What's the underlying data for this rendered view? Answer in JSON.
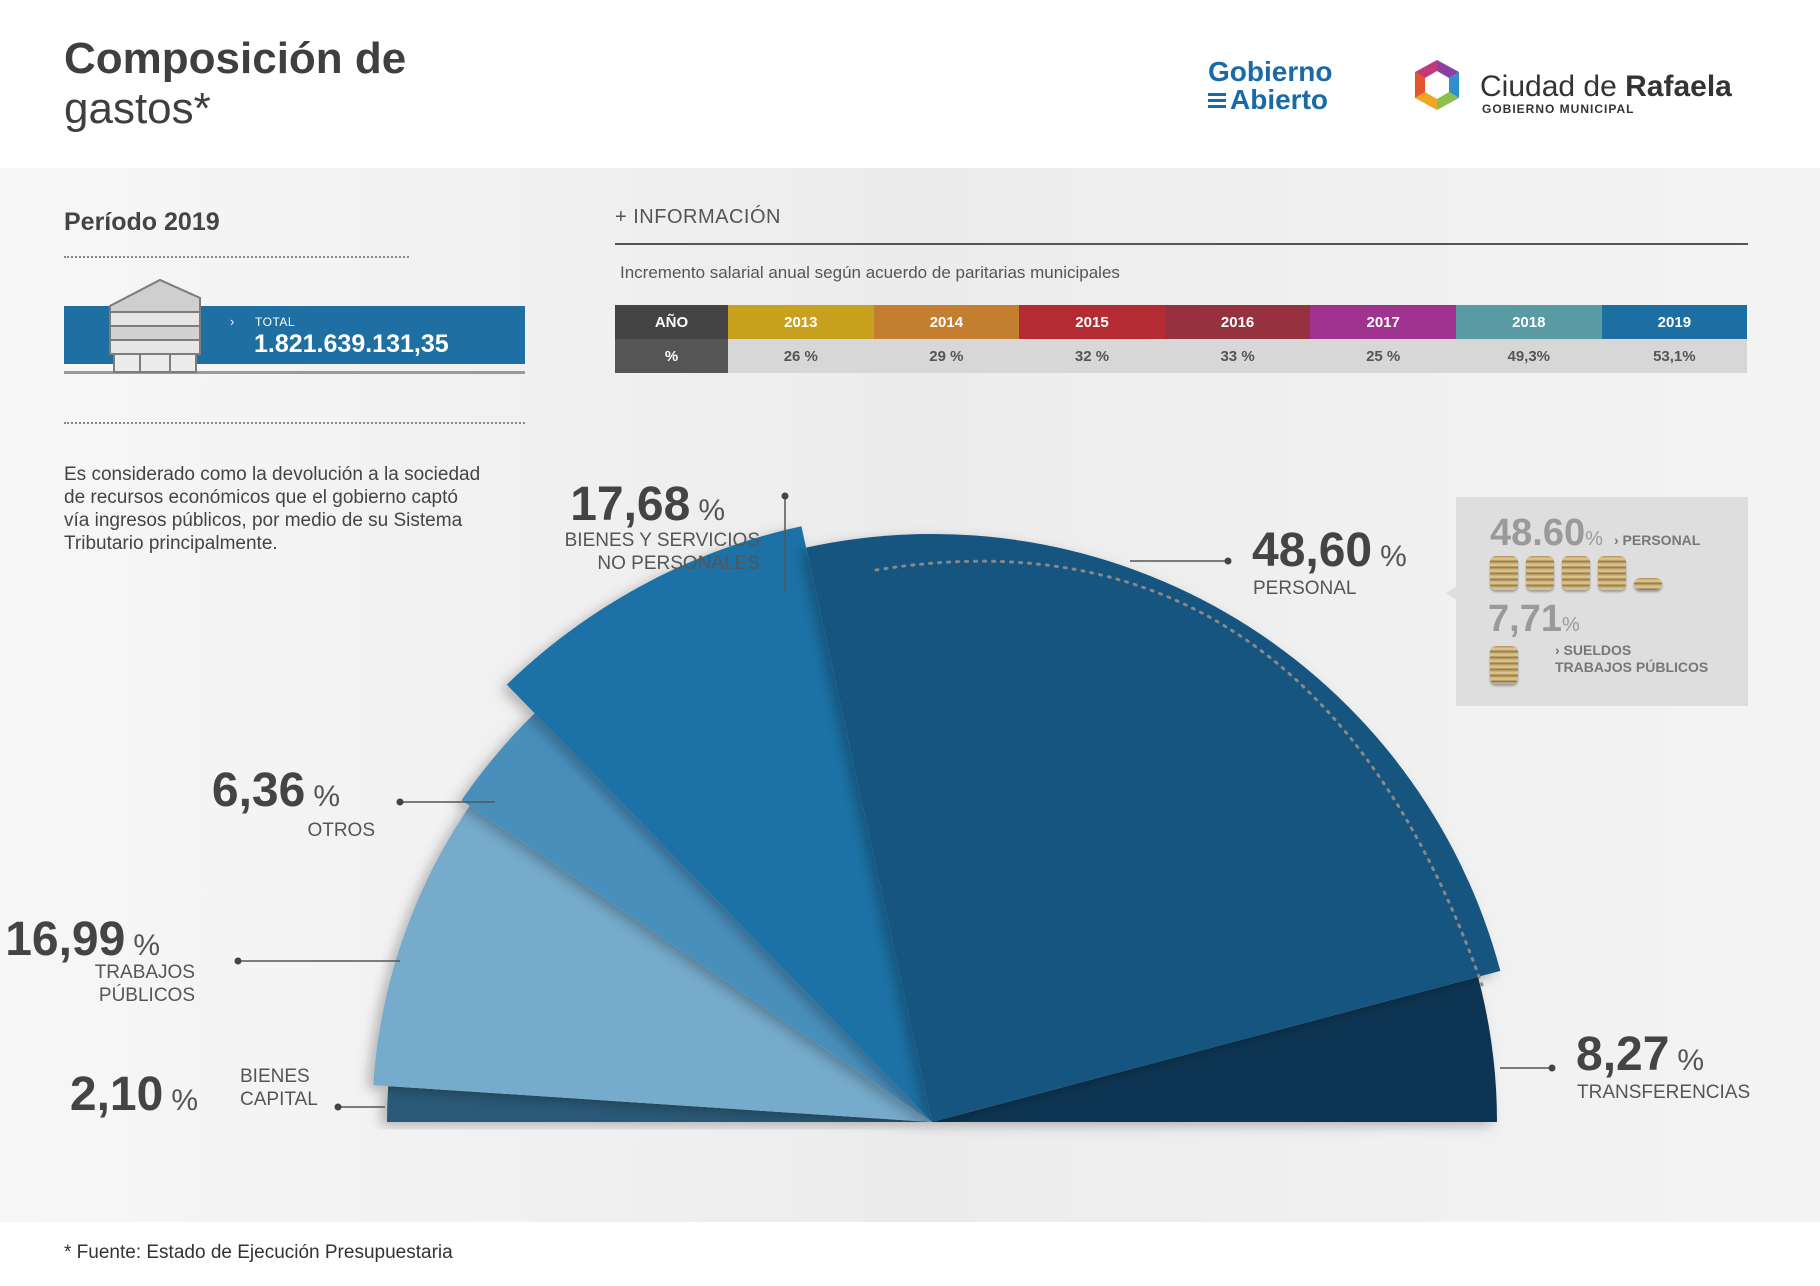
{
  "header": {
    "title_line1": "Composición de",
    "title_line2": "gastos*",
    "logo_left_line1": "Gobierno",
    "logo_left_line2": "Abierto",
    "logo_right_name_light": "Ciudad de ",
    "logo_right_name_bold": "Rafaela",
    "logo_right_sub": "GOBIERNO MUNICIPAL"
  },
  "left": {
    "periodo": "Período 2019",
    "total_label": "TOTAL",
    "total_value": "1.821.639.131,35",
    "description": "Es considerado como la devolución a la sociedad de recursos económicos que el gobierno captó vía ingresos públicos, por medio de su Sistema Tributario principalmente."
  },
  "info": {
    "title": "+ INFORMACIÓN",
    "subtitle": "Incremento salarial  anual según acuerdo de paritarias municipales",
    "year_header": "AÑO",
    "pct_header": "%",
    "years": [
      {
        "year": "2013",
        "pct": "26 %",
        "color": "#c9a21d"
      },
      {
        "year": "2014",
        "pct": "29 %",
        "color": "#c47e30"
      },
      {
        "year": "2015",
        "pct": "32 %",
        "color": "#b52b34"
      },
      {
        "year": "2016",
        "pct": "33 %",
        "color": "#963240"
      },
      {
        "year": "2017",
        "pct": "25 %",
        "color": "#a13390"
      },
      {
        "year": "2018",
        "pct": "49,3%",
        "color": "#5a9aa3"
      },
      {
        "year": "2019",
        "pct": "53,1%",
        "color": "#1d6fa3"
      }
    ]
  },
  "chart_data": {
    "type": "pie",
    "subtype": "semicircle",
    "unit": "%",
    "slices": [
      {
        "value": 2.1,
        "label": "2,10",
        "name_lines": [
          "BIENES",
          "CAPITAL"
        ],
        "color": "#2b5a78"
      },
      {
        "value": 16.99,
        "label": "16,99",
        "name_lines": [
          "TRABAJOS",
          "PÚBLICOS"
        ],
        "color": "#76abcb"
      },
      {
        "value": 6.36,
        "label": "6,36",
        "name_lines": [
          "OTROS"
        ],
        "color": "#4a8fbc"
      },
      {
        "value": 17.68,
        "label": "17,68",
        "name_lines": [
          "BIENES Y SERVICIOS",
          "NO PERSONALES"
        ],
        "color": "#1b72a6"
      },
      {
        "value": 48.6,
        "label": "48,60",
        "name_lines": [
          "PERSONAL"
        ],
        "color": "#135580"
      },
      {
        "value": 8.27,
        "label": "8,27",
        "name_lines": [
          "TRANSFERENCIAS"
        ],
        "color": "#0d3553"
      }
    ]
  },
  "personal_detail": {
    "value1": "48.60",
    "pct_symbol": "%",
    "label1": "› PERSONAL",
    "value2": "7,71",
    "label2_line1": "› SUELDOS",
    "label2_line2": "TRABAJOS PÚBLICOS"
  },
  "footnote": "* Fuente: Estado de Ejecución Presupuestaria"
}
